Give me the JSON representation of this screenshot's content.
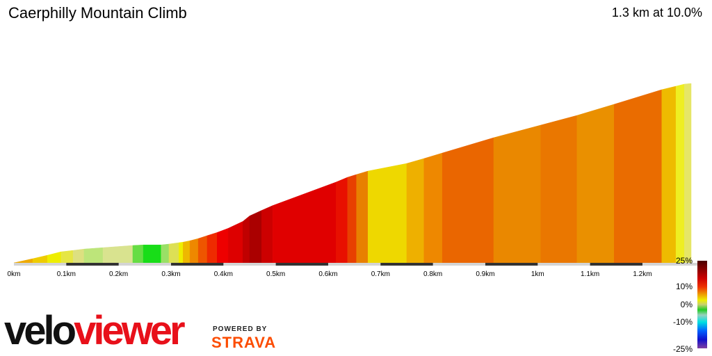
{
  "header": {
    "title": "Caerphilly Mountain Climb",
    "summary": "1.3 km at 10.0%"
  },
  "chart_data": {
    "type": "area",
    "xlabel": "",
    "ylabel": "",
    "x_ticks": [
      "0km",
      "0.1km",
      "0.2km",
      "0.3km",
      "0.4km",
      "0.5km",
      "0.6km",
      "0.7km",
      "0.8km",
      "0.9km",
      "1km",
      "1.1km",
      "1.2km"
    ],
    "x_tick_values": [
      0,
      0.1,
      0.2,
      0.3,
      0.4,
      0.5,
      0.6,
      0.7,
      0.8,
      0.9,
      1.0,
      1.1,
      1.2
    ],
    "xlim": [
      0,
      1.3
    ],
    "distance_km": [
      0,
      0.036,
      0.064,
      0.09,
      0.113,
      0.134,
      0.17,
      0.227,
      0.247,
      0.281,
      0.296,
      0.315,
      0.323,
      0.336,
      0.352,
      0.369,
      0.388,
      0.409,
      0.437,
      0.45,
      0.473,
      0.494,
      0.615,
      0.637,
      0.654,
      0.676,
      0.75,
      0.783,
      0.818,
      0.916,
      1.006,
      1.075,
      1.146,
      1.237,
      1.264,
      1.28,
      1.293
    ],
    "elevation_rel_m": [
      0,
      3,
      5.5,
      8,
      9,
      10,
      11,
      12.6,
      13,
      13,
      13.6,
      14.6,
      15,
      16,
      17.6,
      19.7,
      22,
      25,
      30,
      34,
      38,
      41.5,
      58.5,
      62,
      64,
      66.5,
      72,
      75.6,
      79.6,
      90.7,
      99.8,
      106.8,
      114.9,
      125.5,
      128,
      129.5,
      130
    ],
    "segment_colors": [
      "#eeaa00",
      "#eecc00",
      "#eeee00",
      "#e6e644",
      "#dde080",
      "#bde57a",
      "#d9e38f",
      "#66dd44",
      "#18dd18",
      "#99e066",
      "#dde055",
      "#eeee00",
      "#eeb800",
      "#ee8800",
      "#ee5500",
      "#ee2a00",
      "#ee0000",
      "#dd0000",
      "#c00000",
      "#aa0000",
      "#cc0000",
      "#e00000",
      "#e81000",
      "#e84000",
      "#e88000",
      "#eed800",
      "#eeb000",
      "#ee8800",
      "#ea6600",
      "#ea8800",
      "#ea7700",
      "#ea9000",
      "#ea6c00",
      "#eebb00",
      "#eeee22",
      "#e6e666"
    ],
    "legend": {
      "title": "",
      "labels": [
        "25%",
        "10%",
        "0%",
        "-10%",
        "-25%"
      ],
      "values": [
        25,
        10,
        0,
        -10,
        -25
      ]
    }
  },
  "branding": {
    "velo": "velo",
    "viewer": "viewer",
    "powered_by": "POWERED BY",
    "strava": "STRAVA"
  }
}
